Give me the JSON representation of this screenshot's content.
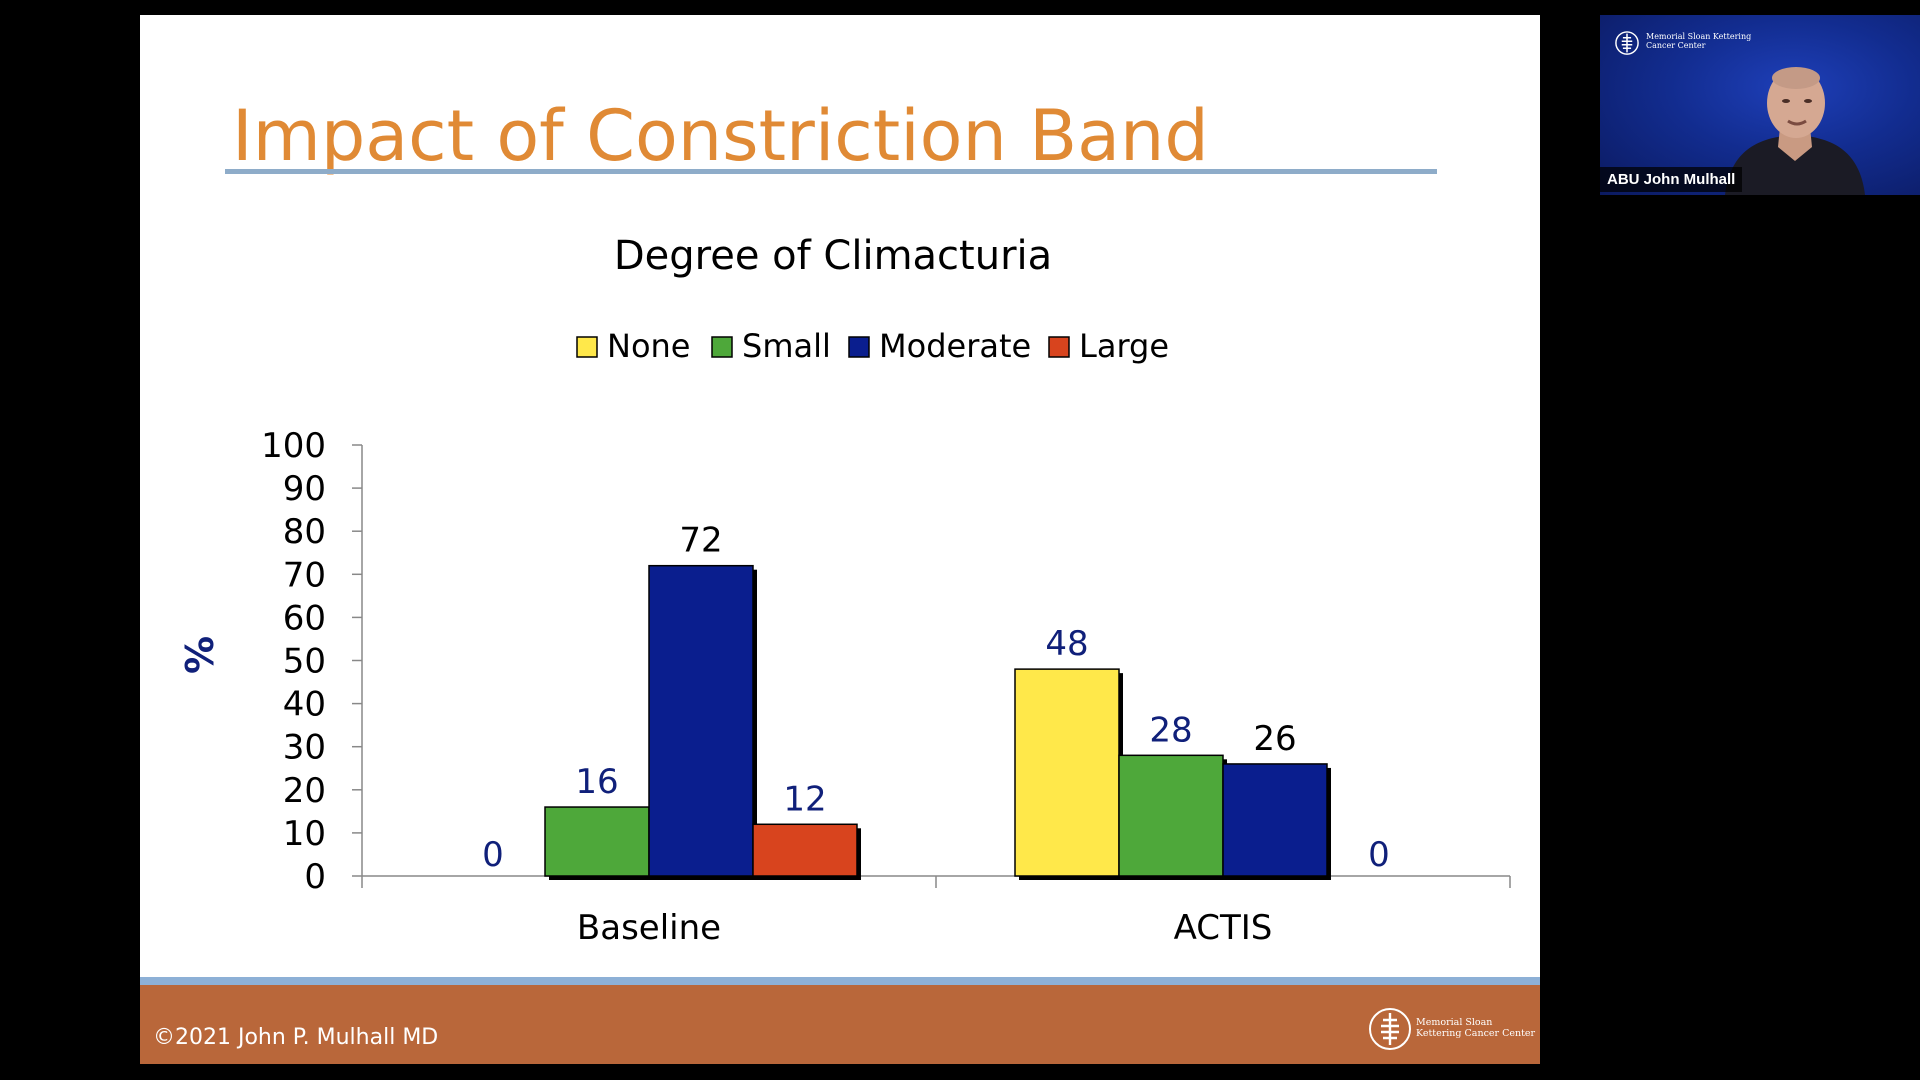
{
  "slide": {
    "title": "Impact of Constriction Band",
    "copyright": "©2021 John P. Mulhall MD",
    "footer_logo": {
      "icon": "msk-logo-icon",
      "text": "Memorial Sloan Kettering Cancer Center"
    }
  },
  "video": {
    "participant_name": "ABU John Mulhall",
    "logo": {
      "icon": "msk-logo-icon",
      "text": "Memorial Sloan Kettering Cancer Center"
    }
  },
  "colors": {
    "title": "#E08A35",
    "footer": "#B9673A",
    "data_label": "#10207A",
    "ylabel": "#10207A"
  },
  "chart_data": {
    "type": "bar",
    "title": "Degree of Climacturia",
    "ylabel": "%",
    "xlabel": "",
    "categories": [
      "Baseline",
      "ACTIS"
    ],
    "ylim": [
      0,
      100
    ],
    "yticks": [
      "0",
      "10",
      "20",
      "30",
      "40",
      "50",
      "60",
      "70",
      "80",
      "90",
      "100"
    ],
    "series": [
      {
        "name": "None",
        "color": "#FFE84A",
        "values": [
          0,
          48
        ]
      },
      {
        "name": "Small",
        "color": "#4EA83A",
        "values": [
          16,
          28
        ]
      },
      {
        "name": "Moderate",
        "color": "#0A1E8E",
        "values": [
          72,
          26
        ]
      },
      {
        "name": "Large",
        "color": "#D8441E",
        "values": [
          12,
          0
        ]
      }
    ],
    "data_label_colors": [
      [
        "#10207A",
        "#10207A"
      ],
      [
        "#10207A",
        "#10207A"
      ],
      [
        "#000000",
        "#000000"
      ],
      [
        "#10207A",
        "#10207A"
      ]
    ],
    "legend_position": "top",
    "grid": false
  }
}
